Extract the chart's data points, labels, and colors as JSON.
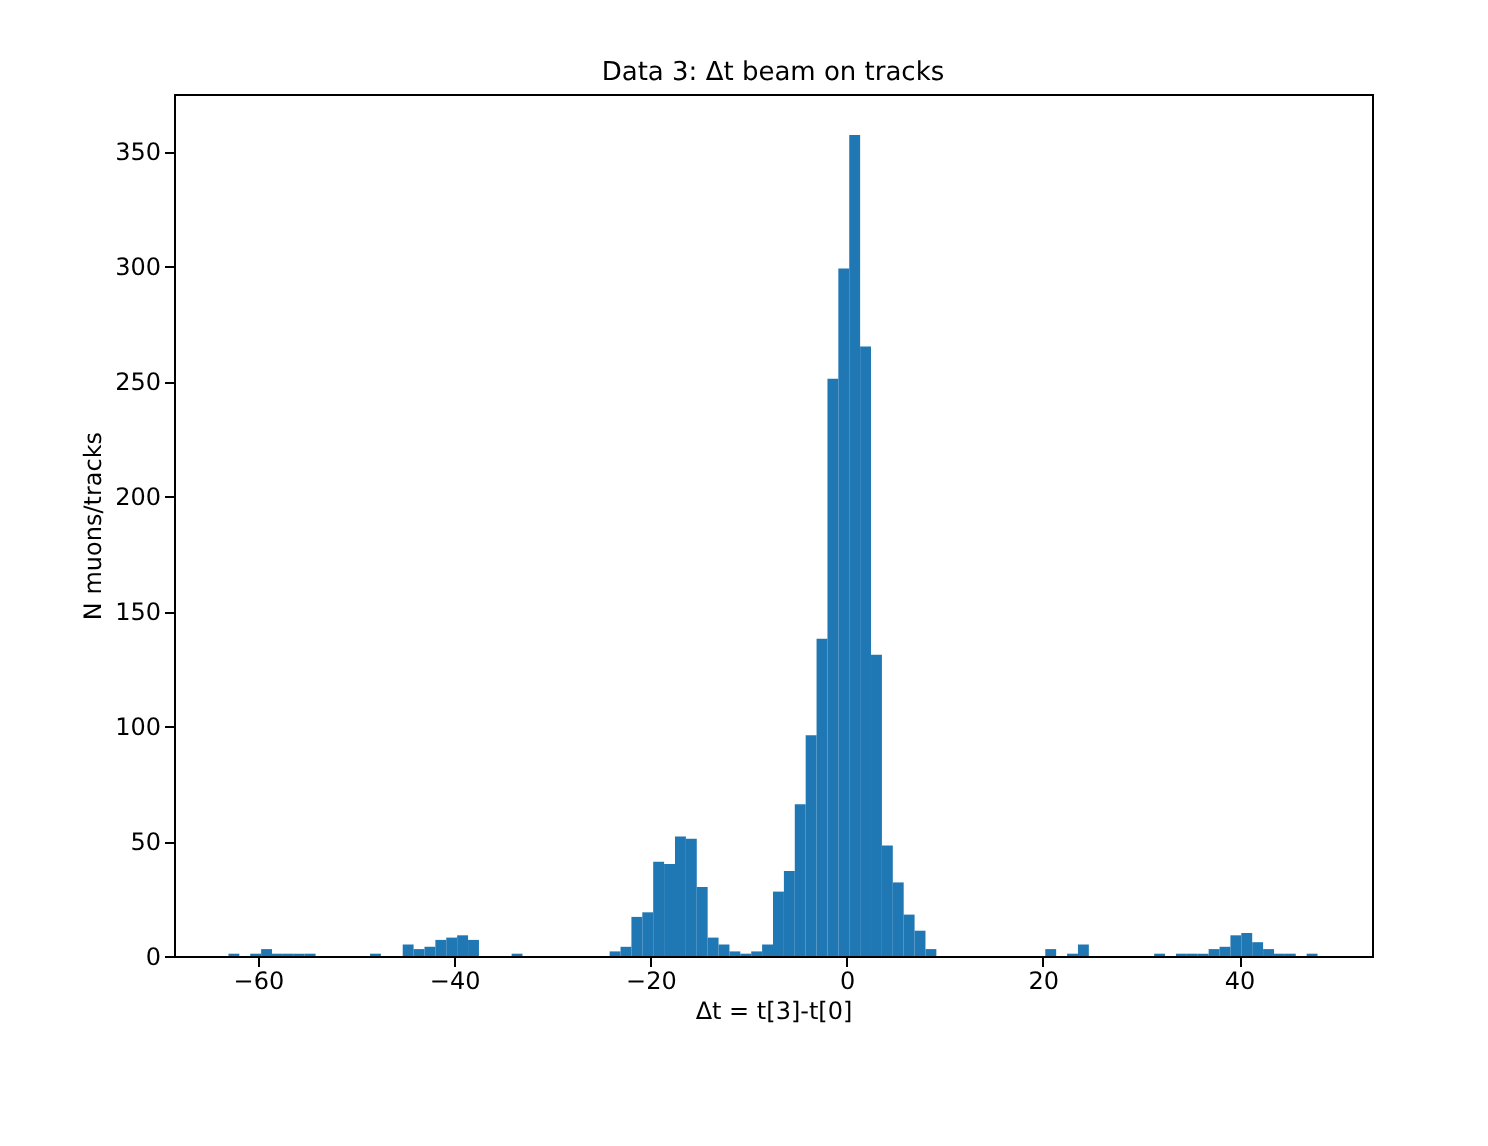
{
  "chart_data": {
    "type": "histogram",
    "title": "Data 3: Δt beam on tracks",
    "xlabel": "Δt = t[3]-t[0]",
    "ylabel": "N muons/tracks",
    "color": "#1f77b4",
    "bins": [
      -63,
      -61.89,
      -60.78,
      -59.67,
      -58.56,
      -57.45,
      -56.34,
      -55.23,
      -54.12,
      -53.01,
      -51.9,
      -50.79,
      -49.68,
      -48.57,
      -47.46,
      -46.35,
      -45.24,
      -44.13,
      -43.02,
      -41.91,
      -40.8,
      -39.69,
      -38.58,
      -37.47,
      -36.36,
      -35.25,
      -34.14,
      -33.03,
      -31.92,
      -30.81,
      -29.7,
      -28.59,
      -27.48,
      -26.37,
      -25.26,
      -24.15,
      -23.04,
      -21.93,
      -20.82,
      -19.71,
      -18.6,
      -17.49,
      -16.38,
      -15.27,
      -14.16,
      -13.05,
      -11.94,
      -10.83,
      -9.72,
      -8.61,
      -7.5,
      -6.39,
      -5.28,
      -4.17,
      -3.06,
      -1.95,
      -0.84,
      0.27,
      1.38,
      2.49,
      3.6,
      4.71,
      5.82,
      6.93,
      8.04,
      9.15,
      10.26,
      11.37,
      12.48,
      13.59,
      14.7,
      15.81,
      16.92,
      18.03,
      19.14,
      20.25,
      21.36,
      22.47,
      23.58,
      24.69,
      25.8,
      26.91,
      28.02,
      29.13,
      30.24,
      31.35,
      32.46,
      33.57,
      34.68,
      35.79,
      36.9,
      38.01,
      39.12,
      40.23,
      41.34,
      42.45,
      43.56,
      44.67,
      45.78,
      46.89,
      48.0
    ],
    "values": [
      1,
      0,
      1,
      3,
      1,
      1,
      1,
      1,
      0,
      0,
      0,
      0,
      0,
      1,
      0,
      0,
      5,
      3,
      4,
      7,
      8,
      9,
      7,
      0,
      0,
      0,
      1,
      0,
      0,
      0,
      0,
      0,
      0,
      0,
      0,
      2,
      4,
      17,
      19,
      41,
      40,
      52,
      51,
      30,
      8,
      5,
      2,
      1,
      2,
      5,
      28,
      37,
      66,
      96,
      138,
      251,
      299,
      357,
      265,
      131,
      48,
      32,
      18,
      11,
      3,
      0,
      0,
      0,
      0,
      0,
      0,
      0,
      0,
      0,
      0,
      3,
      0,
      1,
      5,
      0,
      0,
      0,
      0,
      0,
      0,
      1,
      0,
      1,
      1,
      1,
      3,
      4,
      9,
      10,
      6,
      3,
      1,
      1,
      0,
      1
    ],
    "xlim": [
      -68.55,
      53.55
    ],
    "ylim": [
      0,
      374.85
    ],
    "xticks": [
      -60,
      -40,
      -20,
      0,
      20,
      40
    ],
    "yticks": [
      0,
      50,
      100,
      150,
      200,
      250,
      300,
      350
    ],
    "grid": false
  }
}
